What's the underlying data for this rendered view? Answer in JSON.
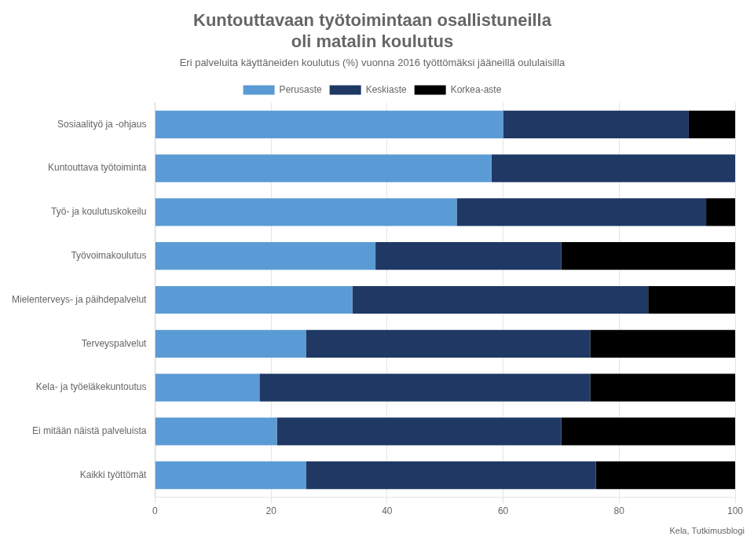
{
  "chart_data": {
    "type": "bar",
    "orientation": "horizontal",
    "stacked": true,
    "title": "Kuntouttavaan työtoimintaan osallistuneilla\noli matalin koulutus",
    "subtitle": "Eri palveluita käyttäneiden koulutus (%) vuonna 2016 työttömäksi jääneillä oululaisilla",
    "source": "Kela, Tutkimusblogi",
    "categories": [
      "Sosiaalityö ja -ohjaus",
      "Kuntouttava työtoiminta",
      "Työ- ja koulutuskokeilu",
      "Työvoimakoulutus",
      "Mielenterveys- ja päihdepalvelut",
      "Terveyspalvelut",
      "Kela- ja työeläkekuntoutus",
      "Ei mitään näistä palveluista",
      "Kaikki työttömät"
    ],
    "series": [
      {
        "name": "Perusaste",
        "color": "#5b9bd5",
        "values": [
          60,
          58,
          52,
          38,
          34,
          26,
          18,
          21,
          26
        ]
      },
      {
        "name": "Keskiaste",
        "color": "#1f3864",
        "values": [
          32,
          42,
          43,
          32,
          51,
          49,
          57,
          49,
          50
        ]
      },
      {
        "name": "Korkea-aste",
        "color": "#000000",
        "values": [
          8,
          0,
          5,
          30,
          15,
          25,
          25,
          30,
          24
        ]
      }
    ],
    "xlim": [
      0,
      100
    ],
    "xticks": [
      0,
      20,
      40,
      60,
      80,
      100
    ],
    "grid": true,
    "legend": "top"
  }
}
